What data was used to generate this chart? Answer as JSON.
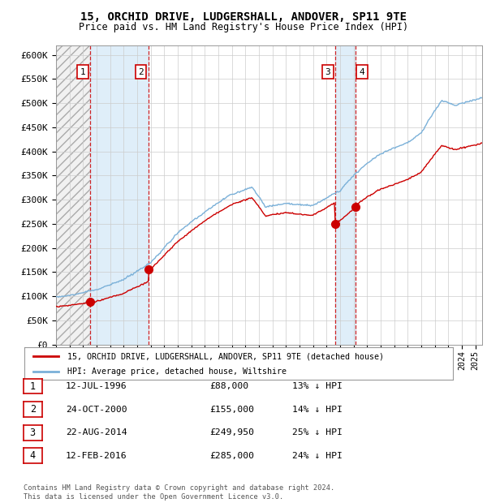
{
  "title": "15, ORCHID DRIVE, LUDGERSHALL, ANDOVER, SP11 9TE",
  "subtitle": "Price paid vs. HM Land Registry's House Price Index (HPI)",
  "ylim": [
    0,
    620000
  ],
  "yticks": [
    0,
    50000,
    100000,
    150000,
    200000,
    250000,
    300000,
    350000,
    400000,
    450000,
    500000,
    550000,
    600000
  ],
  "ytick_labels": [
    "£0",
    "£50K",
    "£100K",
    "£150K",
    "£200K",
    "£250K",
    "£300K",
    "£350K",
    "£400K",
    "£450K",
    "£500K",
    "£550K",
    "£600K"
  ],
  "sales": [
    {
      "date": 1996.54,
      "price": 88000,
      "label": "1"
    },
    {
      "date": 2000.82,
      "price": 155000,
      "label": "2"
    },
    {
      "date": 2014.64,
      "price": 249950,
      "label": "3"
    },
    {
      "date": 2016.12,
      "price": 285000,
      "label": "4"
    }
  ],
  "sale_color": "#cc0000",
  "hpi_color": "#7ab0d8",
  "vline_color": "#cc0000",
  "legend_entries": [
    "15, ORCHID DRIVE, LUDGERSHALL, ANDOVER, SP11 9TE (detached house)",
    "HPI: Average price, detached house, Wiltshire"
  ],
  "table_rows": [
    {
      "num": "1",
      "date": "12-JUL-1996",
      "price": "£88,000",
      "hpi": "13% ↓ HPI"
    },
    {
      "num": "2",
      "date": "24-OCT-2000",
      "price": "£155,000",
      "hpi": "14% ↓ HPI"
    },
    {
      "num": "3",
      "date": "22-AUG-2014",
      "price": "£249,950",
      "hpi": "25% ↓ HPI"
    },
    {
      "num": "4",
      "date": "12-FEB-2016",
      "price": "£285,000",
      "hpi": "24% ↓ HPI"
    }
  ],
  "footnote": "Contains HM Land Registry data © Crown copyright and database right 2024.\nThis data is licensed under the Open Government Licence v3.0.",
  "xmin": 1994,
  "xmax": 2025.5,
  "background_color": "#ffffff"
}
